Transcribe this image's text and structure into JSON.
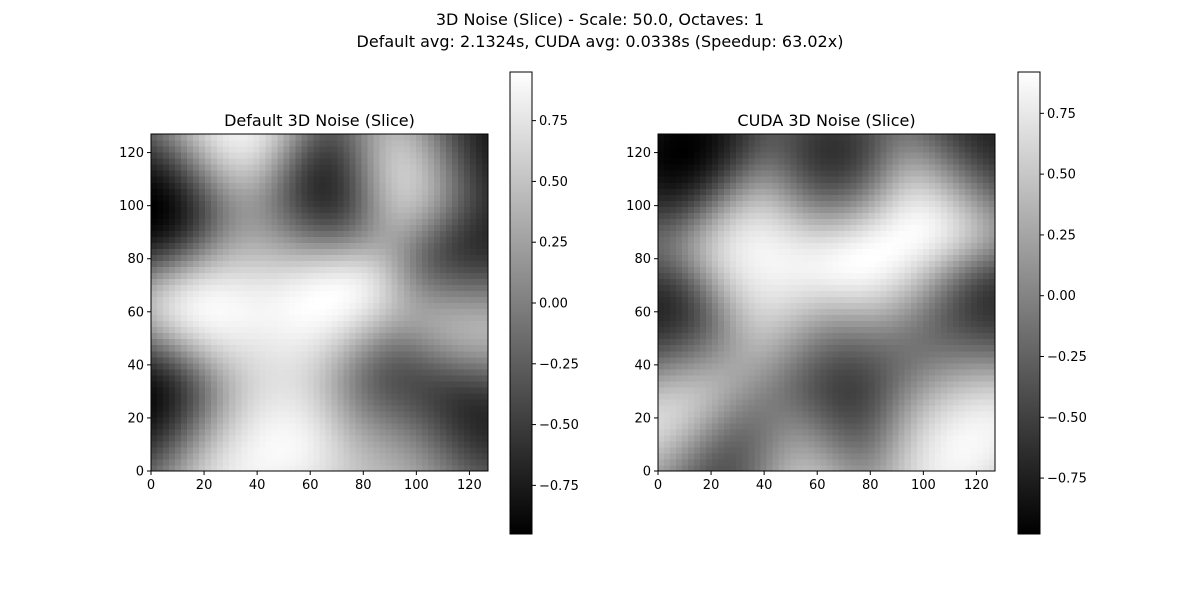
{
  "figure": {
    "suptitle_line1": "3D Noise (Slice) - Scale: 50.0, Octaves: 1",
    "suptitle_line2": "Default avg: 2.1324s, CUDA avg: 0.0338s (Speedup: 63.02x)"
  },
  "chart_data": [
    {
      "type": "heatmap",
      "title": "Default 3D Noise (Slice)",
      "colormap": "gray",
      "origin": "lower",
      "xlim": [
        0,
        127
      ],
      "ylim": [
        0,
        127
      ],
      "x_ticks": [
        0,
        20,
        40,
        60,
        80,
        100,
        120
      ],
      "y_ticks": [
        0,
        20,
        40,
        60,
        80,
        100,
        120
      ],
      "colorbar": {
        "min": -0.95,
        "max": 0.95,
        "ticks": [
          0.75,
          0.5,
          0.25,
          0.0,
          -0.25,
          -0.5,
          -0.75
        ],
        "tick_labels": [
          "0.75",
          "0.50",
          "0.25",
          "0.00",
          "−0.25",
          "−0.50",
          "−0.75"
        ]
      },
      "features": [
        {
          "x": 32,
          "y": 122,
          "v": 0.9
        },
        {
          "x": 8,
          "y": 100,
          "v": -0.95
        },
        {
          "x": 65,
          "y": 103,
          "v": -0.9
        },
        {
          "x": 98,
          "y": 108,
          "v": 0.9
        },
        {
          "x": 125,
          "y": 120,
          "v": -0.75
        },
        {
          "x": 42,
          "y": 85,
          "v": 0.35
        },
        {
          "x": 22,
          "y": 60,
          "v": 0.95
        },
        {
          "x": 72,
          "y": 65,
          "v": 0.95
        },
        {
          "x": 58,
          "y": 55,
          "v": 0.8
        },
        {
          "x": 118,
          "y": 80,
          "v": -0.8
        },
        {
          "x": 118,
          "y": 55,
          "v": 0.8
        },
        {
          "x": 6,
          "y": 26,
          "v": -0.95
        },
        {
          "x": 82,
          "y": 35,
          "v": -0.7
        },
        {
          "x": 115,
          "y": 25,
          "v": -0.85
        },
        {
          "x": 28,
          "y": 8,
          "v": 0.8
        },
        {
          "x": 60,
          "y": 20,
          "v": 0.9
        },
        {
          "x": 95,
          "y": 10,
          "v": 0.5
        },
        {
          "x": 45,
          "y": 40,
          "v": 0.3
        }
      ]
    },
    {
      "type": "heatmap",
      "title": "CUDA 3D Noise (Slice)",
      "colormap": "gray",
      "origin": "lower",
      "xlim": [
        0,
        127
      ],
      "ylim": [
        0,
        127
      ],
      "x_ticks": [
        0,
        20,
        40,
        60,
        80,
        100,
        120
      ],
      "y_ticks": [
        0,
        20,
        40,
        60,
        80,
        100,
        120
      ],
      "colorbar": {
        "min": -0.98,
        "max": 0.92,
        "ticks": [
          0.75,
          0.5,
          0.25,
          0.0,
          -0.25,
          -0.5,
          -0.75
        ],
        "tick_labels": [
          "0.75",
          "0.50",
          "0.25",
          "0.00",
          "−0.25",
          "−0.50",
          "−0.75"
        ]
      },
      "features": [
        {
          "x": 12,
          "y": 118,
          "v": -0.95
        },
        {
          "x": 120,
          "y": 118,
          "v": -0.9
        },
        {
          "x": 68,
          "y": 108,
          "v": -0.85
        },
        {
          "x": 105,
          "y": 100,
          "v": 0.85
        },
        {
          "x": 38,
          "y": 90,
          "v": 0.6
        },
        {
          "x": 75,
          "y": 82,
          "v": 0.95
        },
        {
          "x": 45,
          "y": 60,
          "v": 0.5
        },
        {
          "x": 6,
          "y": 50,
          "v": -0.95
        },
        {
          "x": 120,
          "y": 58,
          "v": -0.85
        },
        {
          "x": 90,
          "y": 65,
          "v": 0.3
        },
        {
          "x": 65,
          "y": 45,
          "v": -0.5
        },
        {
          "x": 100,
          "y": 42,
          "v": -0.55
        },
        {
          "x": 12,
          "y": 28,
          "v": 0.95
        },
        {
          "x": 30,
          "y": 10,
          "v": -0.9
        },
        {
          "x": 72,
          "y": 18,
          "v": -0.95
        },
        {
          "x": 115,
          "y": 30,
          "v": 0.75
        },
        {
          "x": 55,
          "y": 5,
          "v": 0.8
        },
        {
          "x": 100,
          "y": 10,
          "v": 0.6
        }
      ]
    }
  ]
}
